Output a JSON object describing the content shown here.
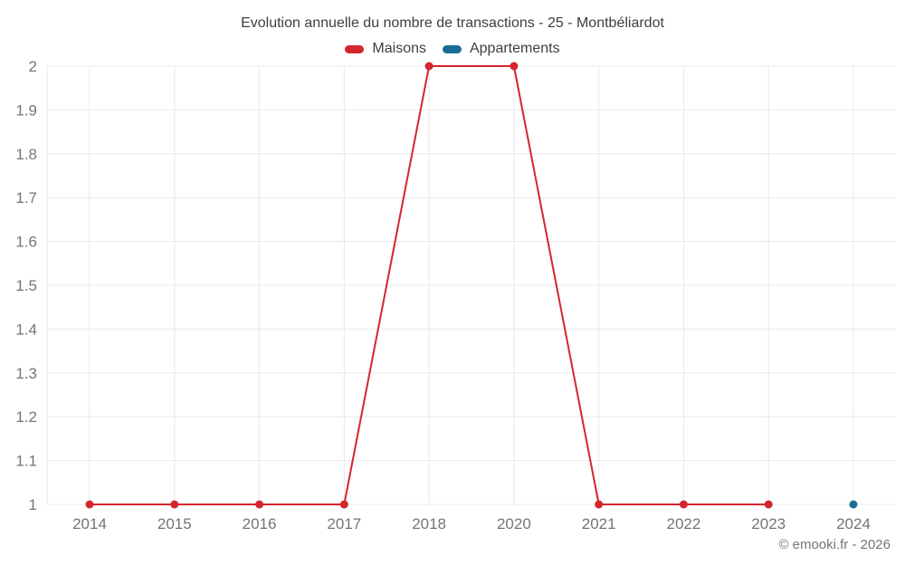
{
  "header": {
    "title": "Evolution annuelle du nombre de transactions - 25 - Montbéliardot"
  },
  "legend": {
    "items": [
      {
        "label": "Maisons",
        "color": "#d4262e"
      },
      {
        "label": "Appartements",
        "color": "#1b6d96"
      }
    ]
  },
  "footer": {
    "credit": "© emooki.fr - 2026"
  },
  "colors": {
    "grid": "#e9e9e9",
    "axis_label": "#757575",
    "title_text": "#3c4043"
  },
  "chart_data": {
    "type": "line",
    "title": "Evolution annuelle du nombre de transactions - 25 - Montbéliardot",
    "xlabel": "",
    "ylabel": "",
    "categories": [
      "2014",
      "2015",
      "2016",
      "2017",
      "2018",
      "2020",
      "2021",
      "2022",
      "2023",
      "2024"
    ],
    "series": [
      {
        "name": "Maisons",
        "color": "#d4262e",
        "values": [
          1,
          1,
          1,
          1,
          2,
          2,
          1,
          1,
          1,
          null
        ]
      },
      {
        "name": "Appartements",
        "color": "#1b6d96",
        "values": [
          null,
          null,
          null,
          null,
          null,
          null,
          null,
          null,
          null,
          1
        ]
      }
    ],
    "ylim": [
      1,
      2
    ],
    "yticks": [
      1,
      1.1,
      1.2,
      1.3,
      1.4,
      1.5,
      1.6,
      1.7,
      1.8,
      1.9,
      2
    ],
    "grid": true,
    "legend_position": "top"
  }
}
